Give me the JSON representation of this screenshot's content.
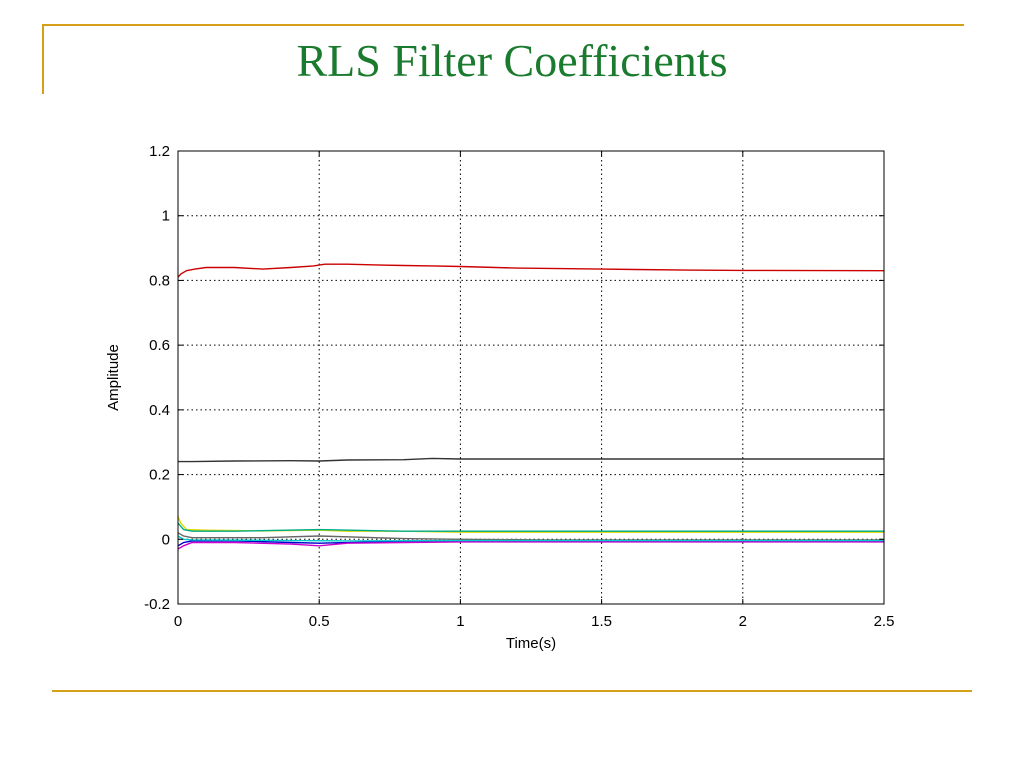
{
  "slide": {
    "title": "RLS Filter Coefficients",
    "accent_color": "#d4a017",
    "title_color": "#1a7a2e"
  },
  "chart_data": {
    "type": "line",
    "title": "",
    "xlabel": "Time(s)",
    "ylabel": "Amplitude",
    "xlim": [
      0,
      2.5
    ],
    "ylim": [
      -0.2,
      1.2
    ],
    "xticks": [
      "0",
      "0.5",
      "1",
      "1.5",
      "2",
      "2.5"
    ],
    "xtick_values": [
      0,
      0.5,
      1,
      1.5,
      2,
      2.5
    ],
    "yticks": [
      "-0.2",
      "0",
      "0.2",
      "0.4",
      "0.6",
      "0.8",
      "1",
      "1.2"
    ],
    "ytick_values": [
      -0.2,
      0,
      0.2,
      0.4,
      0.6,
      0.8,
      1,
      1.2
    ],
    "grid": true,
    "grid_style": "dotted",
    "series": [
      {
        "color": "#cc0000",
        "x": [
          0,
          0.01,
          0.03,
          0.06,
          0.1,
          0.2,
          0.3,
          0.4,
          0.48,
          0.52,
          0.6,
          0.7,
          0.8,
          0.9,
          1.0,
          1.2,
          1.5,
          1.8,
          2.0,
          2.5
        ],
        "y": [
          0.81,
          0.82,
          0.83,
          0.835,
          0.84,
          0.84,
          0.835,
          0.84,
          0.845,
          0.85,
          0.85,
          0.848,
          0.846,
          0.845,
          0.843,
          0.838,
          0.835,
          0.832,
          0.831,
          0.83
        ]
      },
      {
        "color": "#333333",
        "x": [
          0,
          0.05,
          0.2,
          0.4,
          0.5,
          0.6,
          0.8,
          0.9,
          1.0,
          1.5,
          2.0,
          2.5
        ],
        "y": [
          0.24,
          0.24,
          0.242,
          0.243,
          0.242,
          0.245,
          0.246,
          0.25,
          0.248,
          0.248,
          0.248,
          0.248
        ]
      },
      {
        "color": "#d9d900",
        "x": [
          0,
          0.01,
          0.03,
          0.1,
          0.3,
          0.5,
          0.6,
          0.8,
          1.0,
          1.2,
          2.5
        ],
        "y": [
          0.07,
          0.05,
          0.03,
          0.028,
          0.026,
          0.028,
          0.025,
          0.025,
          0.022,
          0.022,
          0.022
        ]
      },
      {
        "color": "#00aa88",
        "x": [
          0,
          0.02,
          0.05,
          0.2,
          0.5,
          0.8,
          1.2,
          2.5
        ],
        "y": [
          0.05,
          0.03,
          0.025,
          0.025,
          0.03,
          0.025,
          0.025,
          0.025
        ]
      },
      {
        "color": "#0000cc",
        "x": [
          0,
          0.02,
          0.05,
          0.2,
          0.4,
          0.5,
          0.7,
          1.0,
          1.5,
          2.5
        ],
        "y": [
          -0.02,
          -0.01,
          -0.005,
          -0.005,
          -0.01,
          -0.012,
          -0.008,
          -0.005,
          -0.005,
          -0.005
        ]
      },
      {
        "color": "#cc00cc",
        "x": [
          0,
          0.02,
          0.05,
          0.2,
          0.4,
          0.5,
          0.6,
          0.8,
          1.0,
          1.5,
          2.5
        ],
        "y": [
          -0.03,
          -0.02,
          -0.01,
          -0.01,
          -0.015,
          -0.02,
          -0.012,
          -0.01,
          -0.008,
          -0.008,
          -0.008
        ]
      },
      {
        "color": "#666666",
        "x": [
          0,
          0.02,
          0.05,
          0.3,
          0.5,
          0.7,
          0.8,
          1.0,
          1.3,
          2.5
        ],
        "y": [
          0.02,
          0.01,
          0.005,
          0.005,
          0.01,
          0.005,
          0.002,
          0.0,
          -0.002,
          -0.002
        ]
      },
      {
        "color": "#00cccc",
        "x": [
          0,
          0.02,
          0.05,
          0.3,
          0.6,
          1.0,
          2.5
        ],
        "y": [
          0.01,
          0.0,
          -0.002,
          -0.003,
          -0.005,
          -0.004,
          -0.004
        ]
      }
    ]
  }
}
